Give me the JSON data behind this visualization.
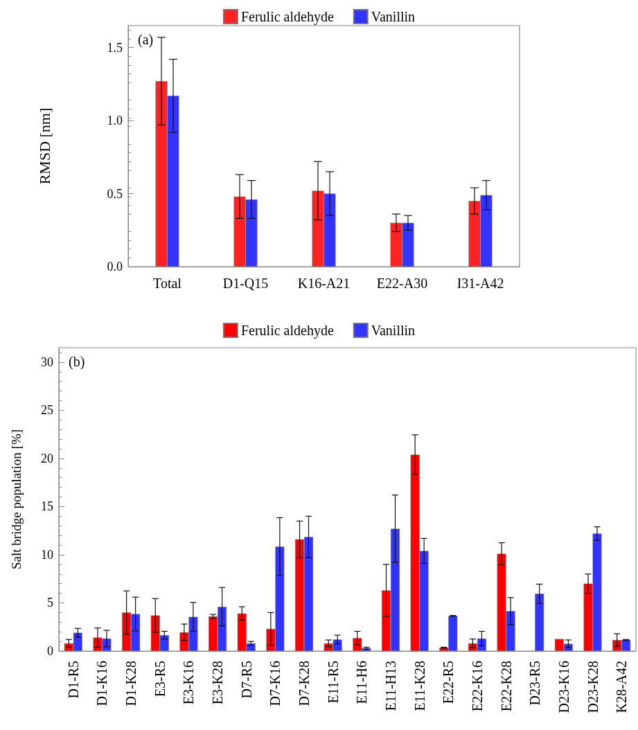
{
  "chart_data": [
    {
      "type": "bar",
      "ylabel": "RMSD [nm]",
      "annotations": [
        "(a)"
      ],
      "categories": [
        "Total",
        "D1-Q15",
        "K16-A21",
        "E22-A30",
        "I31-A42"
      ],
      "series": [
        {
          "name": "Ferulic aldehyde",
          "color": "#ff2222",
          "values": [
            1.27,
            0.48,
            0.52,
            0.3,
            0.45
          ],
          "errors": [
            0.3,
            0.15,
            0.2,
            0.06,
            0.09
          ]
        },
        {
          "name": "Vanillin",
          "color": "#3333ff",
          "values": [
            1.17,
            0.46,
            0.5,
            0.3,
            0.49
          ],
          "errors": [
            0.25,
            0.13,
            0.15,
            0.05,
            0.1
          ]
        }
      ],
      "ylim": [
        0,
        1.65
      ],
      "yticks": [
        {
          "value": 0,
          "label": "0.0"
        },
        0.5,
        {
          "value": 1,
          "label": "1.0"
        },
        1.5
      ],
      "grid": false,
      "legend": "top"
    },
    {
      "type": "bar",
      "ylabel": "Salt bridge population [%]",
      "annotations": [
        "(b)"
      ],
      "categories": [
        "D1-R5",
        "D1-K16",
        "D1-K28",
        "E3-R5",
        "E3-K16",
        "E3-K28",
        "D7-R5",
        "D7-K16",
        "D7-K28",
        "E11-R5",
        "E11-H6",
        "E11-H13",
        "E11-K28",
        "E22-R5",
        "E22-K16",
        "E22-K28",
        "D23-R5",
        "D23-K16",
        "D23-K28",
        "K28-A42"
      ],
      "series": [
        {
          "name": "Ferulic aldehyde",
          "color": "#ff0000",
          "values": [
            0.8,
            1.4,
            4.0,
            3.7,
            1.95,
            3.6,
            3.9,
            2.3,
            11.6,
            0.8,
            1.35,
            6.3,
            20.4,
            0.35,
            0.8,
            10.1,
            null,
            1.25,
            7.0,
            1.15
          ],
          "errors": [
            0.4,
            1.0,
            2.25,
            1.75,
            0.85,
            0.2,
            0.7,
            1.7,
            1.9,
            0.35,
            0.7,
            2.7,
            2.05,
            0.05,
            0.45,
            1.15,
            null,
            null,
            1.0,
            0.65
          ]
        },
        {
          "name": "Vanillin",
          "color": "#3333ff",
          "values": [
            1.9,
            1.3,
            3.85,
            1.65,
            3.55,
            4.6,
            0.8,
            10.85,
            11.85,
            1.2,
            0.3,
            12.7,
            10.4,
            3.65,
            1.3,
            4.15,
            5.95,
            0.75,
            12.2,
            1.15
          ],
          "errors": [
            0.45,
            0.85,
            1.75,
            0.4,
            1.5,
            2.0,
            0.2,
            3.0,
            2.15,
            0.45,
            0.1,
            3.5,
            1.3,
            0.05,
            0.75,
            1.4,
            1.0,
            0.4,
            0.7,
            0.05
          ]
        }
      ],
      "ylim": [
        0,
        31.5
      ],
      "yticks": [
        0,
        5,
        10,
        15,
        20,
        25,
        30
      ],
      "grid": false,
      "legend": "top"
    }
  ]
}
